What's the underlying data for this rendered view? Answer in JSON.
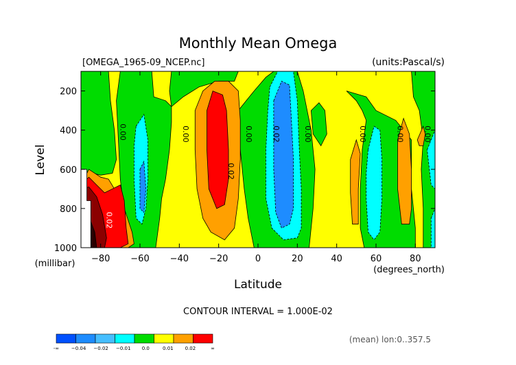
{
  "chart_data": {
    "type": "heatmap",
    "title": "Monthly Mean Omega",
    "file_label": "[OMEGA_1965-09_NCEP.nc]",
    "units_label": "(units:Pascal/s)",
    "xlabel": "Latitude",
    "x_units": "(degrees_north)",
    "ylabel": "Level",
    "y_units": "(millibar)",
    "xlim": [
      -90,
      90
    ],
    "ylim": [
      1000,
      100
    ],
    "x_ticks": [
      -80,
      -60,
      -40,
      -20,
      0,
      20,
      40,
      60,
      80
    ],
    "x_tick_labels": [
      "−80",
      "−60",
      "−40",
      "−20",
      "0",
      "20",
      "40",
      "60",
      "80"
    ],
    "y_ticks": [
      200,
      400,
      600,
      800,
      1000
    ],
    "y_tick_labels": [
      "200",
      "400",
      "600",
      "800",
      "1000"
    ],
    "contour_interval_text": "CONTOUR INTERVAL = 1.000E-02",
    "footer_text": "(mean) lon:0..357.5",
    "colorbar": {
      "labels": [
        "-∞",
        "−0.04",
        "−0.02",
        "−0.01",
        "0.0",
        "0.01",
        "0.02",
        "∞"
      ],
      "colors": [
        "#0050ff",
        "#1e8cff",
        "#46beff",
        "#00ffff",
        "#00dc00",
        "#ffff00",
        "#ffa000",
        "#ff0000"
      ]
    },
    "background_level_color": "#ffff00",
    "regions": [
      {
        "name": "green-band-west",
        "color": "#00dc00",
        "poly": [
          [
            -90,
            600
          ],
          [
            -90,
            100
          ],
          [
            -76,
            100
          ],
          [
            -75,
            250
          ],
          [
            -73,
            400
          ],
          [
            -72,
            550
          ],
          [
            -74,
            620
          ],
          [
            -80,
            630
          ],
          [
            -88,
            610
          ]
        ]
      },
      {
        "name": "green-band-sh-subtropics",
        "color": "#00dc00",
        "poly": [
          [
            -70,
            100
          ],
          [
            -54,
            100
          ],
          [
            -53,
            230
          ],
          [
            -47,
            250
          ],
          [
            -44,
            280
          ],
          [
            -44,
            360
          ],
          [
            -45,
            500
          ],
          [
            -47,
            650
          ],
          [
            -49,
            750
          ],
          [
            -50,
            850
          ],
          [
            -52,
            1000
          ],
          [
            -66,
            1000
          ],
          [
            -68,
            820
          ],
          [
            -70,
            650
          ],
          [
            -71,
            450
          ],
          [
            -72,
            250
          ]
        ]
      },
      {
        "name": "green-band-upper-sh",
        "color": "#00dc00",
        "poly": [
          [
            -44,
            100
          ],
          [
            -10,
            100
          ],
          [
            -12,
            150
          ],
          [
            -20,
            150
          ],
          [
            -30,
            180
          ],
          [
            -38,
            230
          ],
          [
            -44,
            280
          ],
          [
            -45,
            200
          ]
        ]
      },
      {
        "name": "green-band-tropics",
        "color": "#00dc00",
        "poly": [
          [
            -10,
            300
          ],
          [
            -6,
            250
          ],
          [
            -2,
            200
          ],
          [
            4,
            130
          ],
          [
            8,
            100
          ],
          [
            20,
            100
          ],
          [
            23,
            200
          ],
          [
            27,
            400
          ],
          [
            29,
            600
          ],
          [
            28,
            800
          ],
          [
            26,
            1000
          ],
          [
            -2,
            1000
          ],
          [
            -5,
            850
          ],
          [
            -7,
            700
          ],
          [
            -9,
            500
          ]
        ]
      },
      {
        "name": "green-band-upper-nh",
        "color": "#00dc00",
        "poly": [
          [
            27,
            300
          ],
          [
            31,
            260
          ],
          [
            34,
            300
          ],
          [
            35,
            420
          ],
          [
            32,
            480
          ],
          [
            28,
            420
          ]
        ]
      },
      {
        "name": "green-band-nh",
        "color": "#00dc00",
        "poly": [
          [
            45,
            200
          ],
          [
            50,
            250
          ],
          [
            53,
            300
          ],
          [
            55,
            350
          ],
          [
            53,
            500
          ],
          [
            52,
            700
          ],
          [
            52,
            900
          ],
          [
            54,
            1000
          ],
          [
            80,
            1000
          ],
          [
            80,
            900
          ],
          [
            78,
            700
          ],
          [
            78,
            450
          ],
          [
            70,
            350
          ],
          [
            60,
            300
          ],
          [
            55,
            230
          ]
        ]
      },
      {
        "name": "green-band-north-pole",
        "color": "#00dc00",
        "poly": [
          [
            78,
            100
          ],
          [
            90,
            100
          ],
          [
            90,
            1000
          ],
          [
            84,
            1000
          ],
          [
            84,
            800
          ],
          [
            83,
            600
          ],
          [
            84,
            450
          ],
          [
            82,
            300
          ],
          [
            79,
            230
          ]
        ]
      },
      {
        "name": "green-spot-west",
        "color": "#00dc00",
        "poly": [
          [
            -85,
            680
          ],
          [
            -82,
            640
          ],
          [
            -80,
            700
          ],
          [
            -83,
            740
          ]
        ]
      },
      {
        "name": "cyan-sh",
        "color": "#00ffff",
        "poly": [
          [
            -62,
            380
          ],
          [
            -58,
            320
          ],
          [
            -56,
            450
          ],
          [
            -56,
            650
          ],
          [
            -57,
            800
          ],
          [
            -59,
            880
          ],
          [
            -62,
            850
          ],
          [
            -63,
            650
          ],
          [
            -63,
            480
          ]
        ]
      },
      {
        "name": "cyan-tropics",
        "color": "#00ffff",
        "poly": [
          [
            6,
            180
          ],
          [
            10,
            100
          ],
          [
            18,
            100
          ],
          [
            20,
            250
          ],
          [
            21,
            500
          ],
          [
            22,
            700
          ],
          [
            22,
            900
          ],
          [
            20,
            950
          ],
          [
            13,
            960
          ],
          [
            7,
            900
          ],
          [
            4,
            750
          ],
          [
            4,
            500
          ],
          [
            5,
            300
          ]
        ]
      },
      {
        "name": "cyan-nh",
        "color": "#00ffff",
        "poly": [
          [
            56,
            500
          ],
          [
            59,
            380
          ],
          [
            62,
            400
          ],
          [
            63,
            550
          ],
          [
            63,
            750
          ],
          [
            62,
            920
          ],
          [
            59,
            960
          ],
          [
            56,
            920
          ],
          [
            55,
            750
          ],
          [
            55,
            620
          ]
        ]
      },
      {
        "name": "cyan-north-edge",
        "color": "#00ffff",
        "poly": [
          [
            86,
            500
          ],
          [
            90,
            400
          ],
          [
            90,
            700
          ],
          [
            88,
            680
          ]
        ]
      },
      {
        "name": "cyan-north-bottom",
        "color": "#00ffff",
        "poly": [
          [
            88,
            850
          ],
          [
            90,
            800
          ],
          [
            90,
            1000
          ],
          [
            88,
            1000
          ]
        ]
      },
      {
        "name": "blue-tropics",
        "color": "#1e8cff",
        "poly": [
          [
            8,
            250
          ],
          [
            12,
            150
          ],
          [
            16,
            170
          ],
          [
            17,
            350
          ],
          [
            18,
            550
          ],
          [
            18,
            800
          ],
          [
            16,
            880
          ],
          [
            12,
            900
          ],
          [
            9,
            820
          ],
          [
            8,
            600
          ],
          [
            8,
            400
          ]
        ]
      },
      {
        "name": "blue-sh-low",
        "color": "#1e8cff",
        "poly": [
          [
            -60,
            600
          ],
          [
            -58,
            560
          ],
          [
            -57,
            700
          ],
          [
            -58,
            820
          ],
          [
            -60,
            800
          ]
        ]
      },
      {
        "name": "orange-sh-column",
        "color": "#ffa000",
        "poly": [
          [
            -32,
            300
          ],
          [
            -28,
            200
          ],
          [
            -22,
            150
          ],
          [
            -15,
            150
          ],
          [
            -10,
            200
          ],
          [
            -9,
            350
          ],
          [
            -9,
            550
          ],
          [
            -10,
            750
          ],
          [
            -12,
            900
          ],
          [
            -17,
            960
          ],
          [
            -24,
            920
          ],
          [
            -28,
            850
          ],
          [
            -31,
            700
          ],
          [
            -32,
            500
          ]
        ]
      },
      {
        "name": "orange-nh-column-1",
        "color": "#ffa000",
        "poly": [
          [
            47,
            550
          ],
          [
            50,
            450
          ],
          [
            52,
            520
          ],
          [
            51,
            700
          ],
          [
            51,
            880
          ],
          [
            48,
            880
          ],
          [
            47,
            720
          ]
        ]
      },
      {
        "name": "orange-nh-column-2",
        "color": "#ffa000",
        "poly": [
          [
            71,
            450
          ],
          [
            74,
            340
          ],
          [
            77,
            420
          ],
          [
            78,
            600
          ],
          [
            78,
            800
          ],
          [
            77,
            880
          ],
          [
            73,
            880
          ],
          [
            71,
            700
          ]
        ]
      },
      {
        "name": "orange-nh-upper",
        "color": "#ffa000",
        "poly": [
          [
            81,
            450
          ],
          [
            84,
            380
          ],
          [
            85,
            420
          ],
          [
            84,
            480
          ],
          [
            82,
            480
          ]
        ]
      },
      {
        "name": "orange-polar-sh",
        "color": "#ffa000",
        "poly": [
          [
            -90,
            900
          ],
          [
            -90,
            680
          ],
          [
            -86,
            600
          ],
          [
            -80,
            640
          ],
          [
            -76,
            650
          ],
          [
            -73,
            700
          ],
          [
            -68,
            800
          ],
          [
            -64,
            920
          ],
          [
            -63,
            980
          ],
          [
            -66,
            1000
          ],
          [
            -90,
            1000
          ]
        ]
      },
      {
        "name": "red-sh-column",
        "color": "#ff0000",
        "poly": [
          [
            -26,
            300
          ],
          [
            -23,
            200
          ],
          [
            -18,
            220
          ],
          [
            -16,
            300
          ],
          [
            -15,
            500
          ],
          [
            -15,
            650
          ],
          [
            -17,
            780
          ],
          [
            -21,
            800
          ],
          [
            -25,
            700
          ],
          [
            -26,
            500
          ]
        ]
      },
      {
        "name": "red-polar-sh",
        "color": "#ff0000",
        "poly": [
          [
            -90,
            1000
          ],
          [
            -90,
            680
          ],
          [
            -86,
            640
          ],
          [
            -82,
            680
          ],
          [
            -78,
            720
          ],
          [
            -74,
            700
          ],
          [
            -70,
            680
          ],
          [
            -68,
            760
          ],
          [
            -67,
            900
          ],
          [
            -66,
            980
          ],
          [
            -70,
            1000
          ]
        ]
      },
      {
        "name": "dark-polar-sh",
        "color": "#8b0000",
        "poly": [
          [
            -90,
            1000
          ],
          [
            -90,
            700
          ],
          [
            -86,
            690
          ],
          [
            -82,
            740
          ],
          [
            -79,
            830
          ],
          [
            -77,
            950
          ],
          [
            -78,
            1000
          ]
        ]
      },
      {
        "name": "black-polar-sh",
        "color": "#2a0000",
        "poly": [
          [
            -90,
            1000
          ],
          [
            -90,
            800
          ],
          [
            -86,
            840
          ],
          [
            -83,
            920
          ],
          [
            -82,
            1000
          ]
        ]
      },
      {
        "name": "missing-data-block",
        "color": "#ffffff",
        "poly": [
          [
            -90,
            600
          ],
          [
            -87,
            600
          ],
          [
            -87,
            760
          ],
          [
            -85,
            760
          ],
          [
            -85,
            1000
          ],
          [
            -90,
            1000
          ]
        ]
      }
    ],
    "contour_labels": [
      {
        "text": "0.00",
        "lat": -70,
        "lev": 410,
        "color": "#000000"
      },
      {
        "text": "0.00",
        "lat": -38,
        "lev": 420,
        "color": "#000000"
      },
      {
        "text": "0.00",
        "lat": -6,
        "lev": 420,
        "color": "#000000"
      },
      {
        "text": "0.02",
        "lat": -15,
        "lev": 610,
        "color": "#000000"
      },
      {
        "text": "0.02",
        "lat": 8,
        "lev": 420,
        "color": "#000000"
      },
      {
        "text": "0.00",
        "lat": 24,
        "lev": 420,
        "color": "#000000"
      },
      {
        "text": "0.00",
        "lat": 52,
        "lev": 420,
        "color": "#000000"
      },
      {
        "text": "0.00",
        "lat": 71,
        "lev": 420,
        "color": "#000000"
      },
      {
        "text": "0.00",
        "lat": 85,
        "lev": 420,
        "color": "#000000"
      },
      {
        "text": "0.02",
        "lat": -77,
        "lev": 860,
        "color": "#ffffff"
      }
    ]
  }
}
